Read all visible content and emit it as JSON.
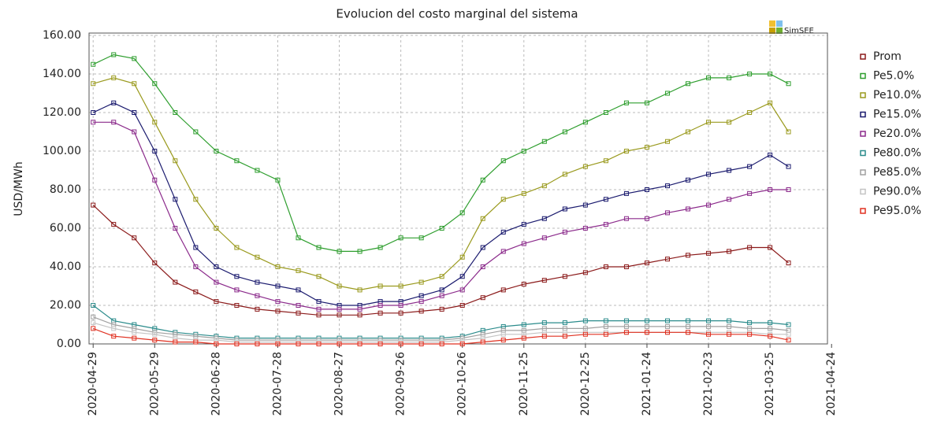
{
  "chart_data": {
    "type": "line",
    "title": "Evolucion del costo marginal del sistema",
    "logo_text": "SimSEE",
    "ylabel": "USD/MWh",
    "x": [
      "2020-04-29",
      "2020-05-09",
      "2020-05-19",
      "2020-05-29",
      "2020-06-08",
      "2020-06-18",
      "2020-06-28",
      "2020-07-08",
      "2020-07-18",
      "2020-07-28",
      "2020-08-07",
      "2020-08-17",
      "2020-08-27",
      "2020-09-06",
      "2020-09-16",
      "2020-09-26",
      "2020-10-06",
      "2020-10-16",
      "2020-10-26",
      "2020-11-05",
      "2020-11-15",
      "2020-11-25",
      "2020-12-05",
      "2020-12-15",
      "2020-12-25",
      "2021-01-04",
      "2021-01-14",
      "2021-01-24",
      "2021-02-03",
      "2021-02-13",
      "2021-02-23",
      "2021-03-05",
      "2021-03-15",
      "2021-03-25",
      "2021-04-03"
    ],
    "xlim": [
      "2020-04-27",
      "2021-04-22"
    ],
    "xticks": [
      "2020-04-29",
      "2020-05-29",
      "2020-06-28",
      "2020-07-28",
      "2020-08-27",
      "2020-09-26",
      "2020-10-26",
      "2020-11-25",
      "2020-12-25",
      "2021-01-24",
      "2021-02-23",
      "2021-03-25",
      "2021-04-24"
    ],
    "ylim": [
      0,
      160
    ],
    "yticks": [
      {
        "value": 0,
        "label": "0.00"
      },
      {
        "value": 20,
        "label": "20.00"
      },
      {
        "value": 40,
        "label": "40.00"
      },
      {
        "value": 60,
        "label": "60.00"
      },
      {
        "value": 80,
        "label": "80.00"
      },
      {
        "value": 100,
        "label": "100.00"
      },
      {
        "value": 120,
        "label": "120.00"
      },
      {
        "value": 140,
        "label": "140.00"
      },
      {
        "value": 160,
        "label": "160.00"
      }
    ],
    "grid": true,
    "legend": "right",
    "series": [
      {
        "name": "Prom",
        "color": "#8b1a1a",
        "values": [
          72,
          62,
          55,
          42,
          32,
          27,
          22,
          20,
          18,
          17,
          16,
          15,
          15,
          15,
          16,
          16,
          17,
          18,
          20,
          24,
          28,
          31,
          33,
          35,
          37,
          40,
          40,
          42,
          44,
          46,
          47,
          48,
          50,
          50,
          42
        ]
      },
      {
        "name": "Pe5.0%",
        "color": "#2e9e2e",
        "values": [
          145,
          150,
          148,
          135,
          120,
          110,
          100,
          95,
          90,
          85,
          55,
          50,
          48,
          48,
          50,
          55,
          55,
          60,
          68,
          85,
          95,
          100,
          105,
          110,
          115,
          120,
          125,
          125,
          130,
          135,
          138,
          138,
          140,
          140,
          135
        ]
      },
      {
        "name": "Pe10.0%",
        "color": "#9a9a1e",
        "values": [
          135,
          138,
          135,
          115,
          95,
          75,
          60,
          50,
          45,
          40,
          38,
          35,
          30,
          28,
          30,
          30,
          32,
          35,
          45,
          65,
          75,
          78,
          82,
          88,
          92,
          95,
          100,
          102,
          105,
          110,
          115,
          115,
          120,
          125,
          110
        ]
      },
      {
        "name": "Pe15.0%",
        "color": "#1a1a6e",
        "values": [
          120,
          125,
          120,
          100,
          75,
          50,
          40,
          35,
          32,
          30,
          28,
          22,
          20,
          20,
          22,
          22,
          25,
          28,
          35,
          50,
          58,
          62,
          65,
          70,
          72,
          75,
          78,
          80,
          82,
          85,
          88,
          90,
          92,
          98,
          92
        ]
      },
      {
        "name": "Pe20.0%",
        "color": "#8b2a8b",
        "values": [
          115,
          115,
          110,
          85,
          60,
          40,
          32,
          28,
          25,
          22,
          20,
          18,
          18,
          18,
          20,
          20,
          22,
          25,
          28,
          40,
          48,
          52,
          55,
          58,
          60,
          62,
          65,
          65,
          68,
          70,
          72,
          75,
          78,
          80,
          80
        ]
      },
      {
        "name": "Pe80.0%",
        "color": "#2a8b8b",
        "values": [
          20,
          12,
          10,
          8,
          6,
          5,
          4,
          3,
          3,
          3,
          3,
          3,
          3,
          3,
          3,
          3,
          3,
          3,
          4,
          7,
          9,
          10,
          11,
          11,
          12,
          12,
          12,
          12,
          12,
          12,
          12,
          12,
          11,
          11,
          10
        ]
      },
      {
        "name": "Pe85.0%",
        "color": "#a0a0a0",
        "values": [
          14,
          10,
          8,
          6,
          5,
          4,
          3,
          2,
          2,
          2,
          2,
          2,
          2,
          2,
          2,
          2,
          2,
          2,
          3,
          5,
          7,
          7,
          8,
          8,
          8,
          9,
          9,
          9,
          9,
          9,
          9,
          9,
          8,
          8,
          7
        ]
      },
      {
        "name": "Pe90.0%",
        "color": "#c4c4c4",
        "values": [
          11,
          8,
          6,
          5,
          3,
          2,
          2,
          1,
          1,
          1,
          1,
          1,
          1,
          1,
          1,
          1,
          1,
          1,
          2,
          3,
          5,
          5,
          6,
          6,
          6,
          6,
          6,
          6,
          6,
          6,
          6,
          6,
          6,
          5,
          5
        ]
      },
      {
        "name": "Pe95.0%",
        "color": "#e03020",
        "values": [
          8,
          4,
          3,
          2,
          1,
          1,
          0,
          0,
          0,
          0,
          0,
          0,
          0,
          0,
          0,
          0,
          0,
          0,
          0,
          1,
          2,
          3,
          4,
          4,
          5,
          5,
          6,
          6,
          6,
          6,
          5,
          5,
          5,
          4,
          2
        ]
      }
    ]
  }
}
